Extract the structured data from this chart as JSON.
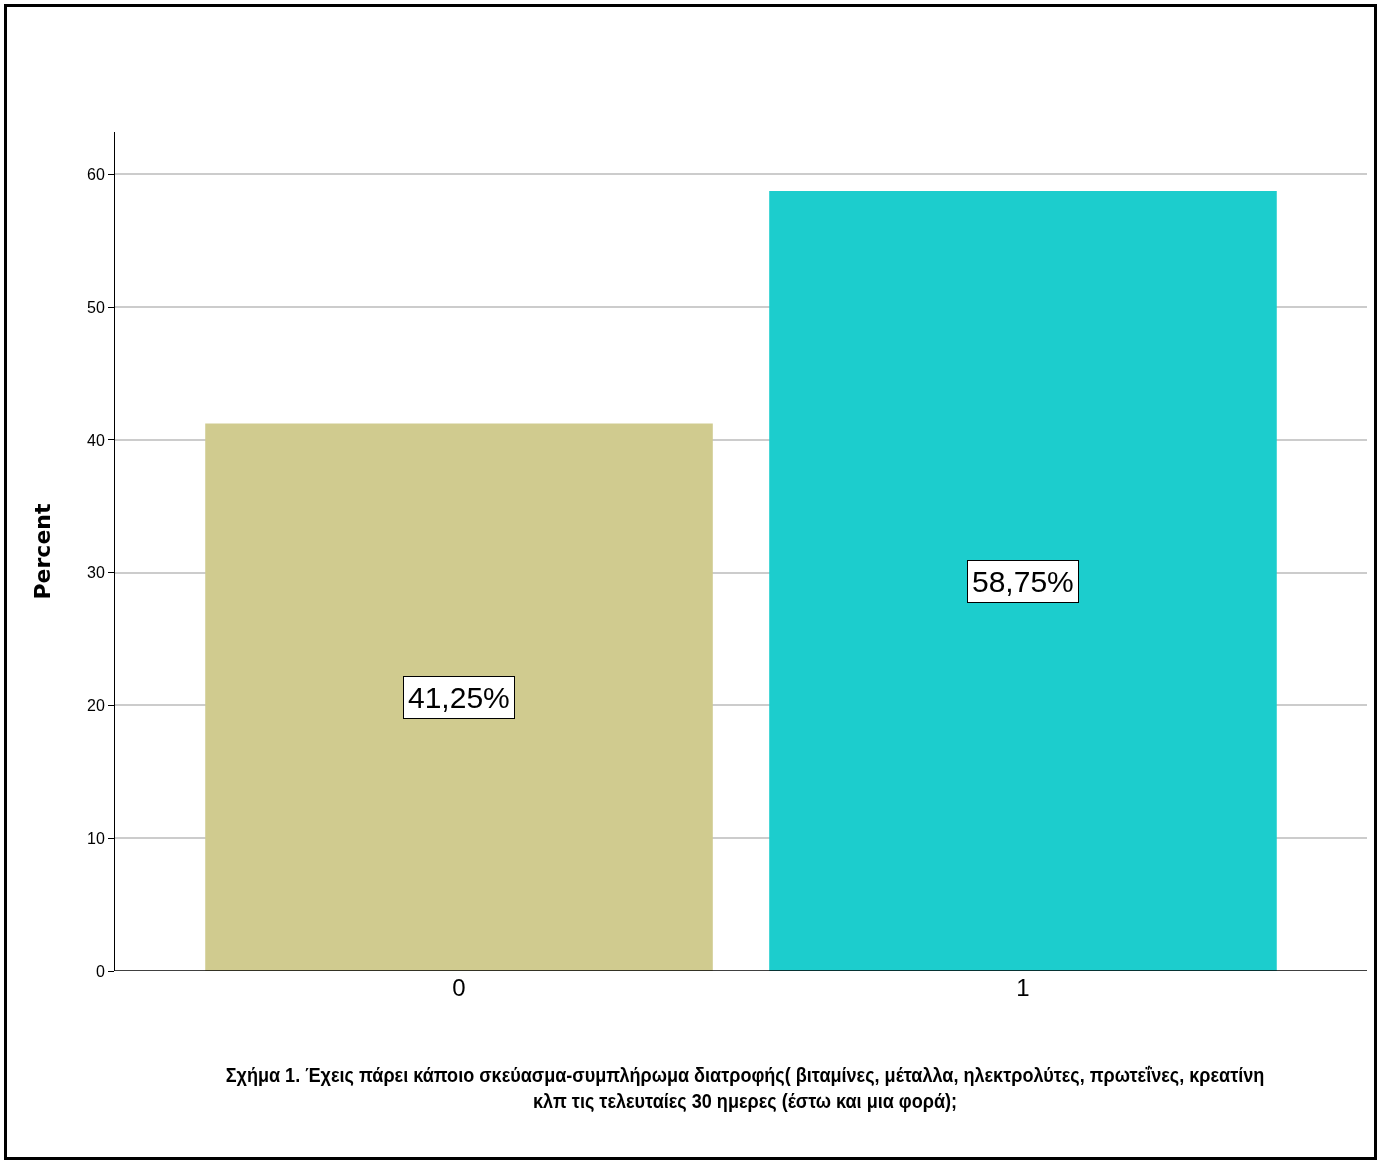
{
  "chart_data": {
    "type": "bar",
    "categories": [
      "0",
      "1"
    ],
    "values": [
      41.25,
      58.75
    ],
    "colors": [
      "#d0cb8f",
      "#1ccdcd"
    ],
    "value_labels": [
      "41,25%",
      "58,75%"
    ],
    "ylabel": "Percent",
    "ylim": [
      0,
      63.2
    ],
    "yticks": [
      0,
      10,
      20,
      30,
      40,
      50,
      60
    ],
    "grid": "y",
    "annotations": [
      "Σχήμα 1. Έχεις πάρει κάποιο σκεύασμα-συμπλήρωμα διατροφής( βιταμίνες, μέταλλα, ηλεκτρολύτες, πρωτεΐνες, κρεατίνη κλπ τις τελευταίες 30 ημερες (έστω και μια φορά);"
    ]
  }
}
